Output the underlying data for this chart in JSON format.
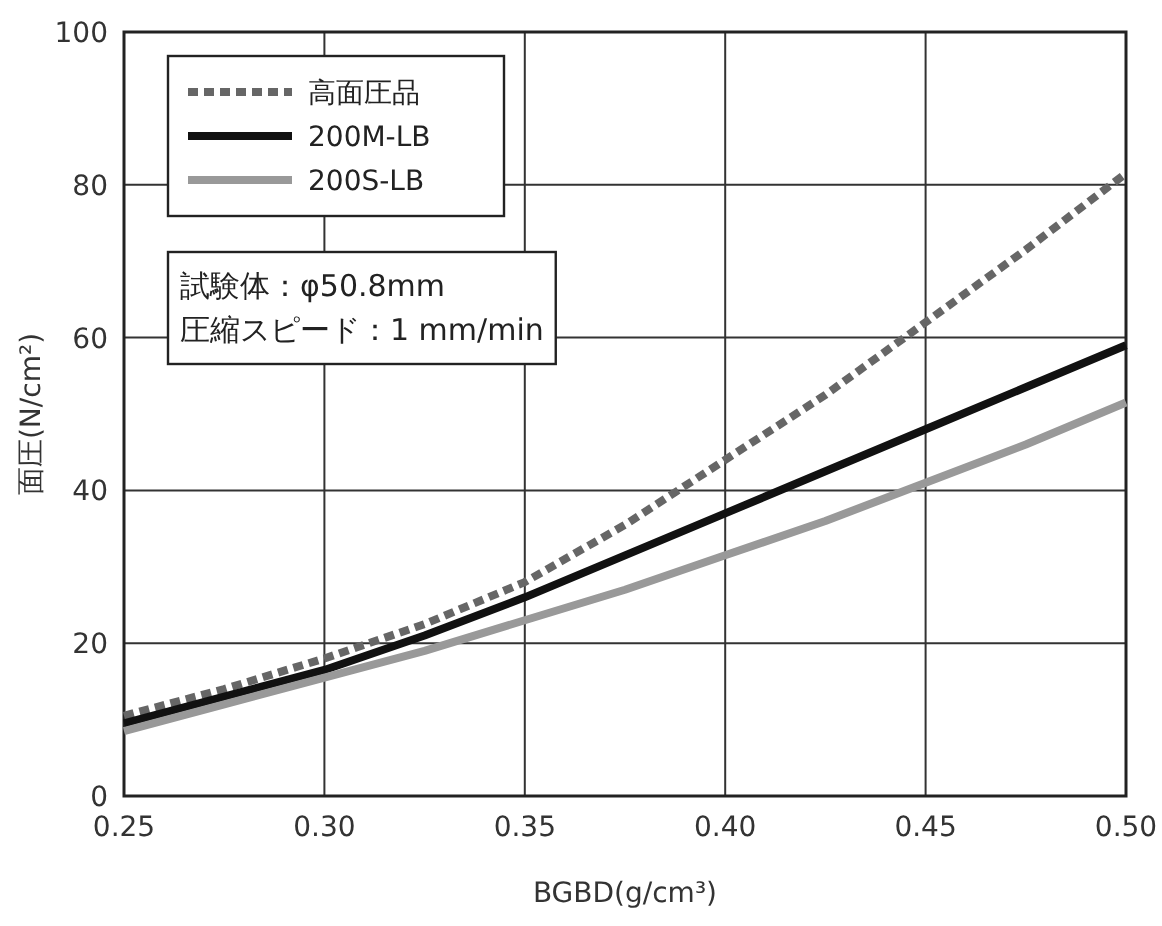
{
  "chart_data": {
    "type": "line",
    "xlabel": "BGBD(g/cm³)",
    "ylabel": "面圧(N/cm²)",
    "x": [
      0.25,
      0.275,
      0.3,
      0.325,
      0.35,
      0.375,
      0.4,
      0.425,
      0.45,
      0.475,
      0.5
    ],
    "xlim": [
      0.25,
      0.5
    ],
    "ylim": [
      0,
      100
    ],
    "xticks": [
      {
        "value": 0.25,
        "label": "0.25"
      },
      {
        "value": 0.3,
        "label": "0.30"
      },
      {
        "value": 0.35,
        "label": "0.35"
      },
      {
        "value": 0.4,
        "label": "0.40"
      },
      {
        "value": 0.45,
        "label": "0.45"
      },
      {
        "value": 0.5,
        "label": "0.50"
      }
    ],
    "yticks": [
      0,
      20,
      40,
      60,
      80,
      100
    ],
    "grid": true,
    "legend": "top left",
    "series": [
      {
        "name": "高面圧品",
        "color": "#666666",
        "line_style": "dashed",
        "values": [
          10.5,
          14,
          18,
          22.5,
          28,
          35.5,
          44,
          52.5,
          62,
          71.5,
          81.5
        ]
      },
      {
        "name": "200M-LB",
        "color": "#111111",
        "line_style": "solid",
        "values": [
          9.5,
          13,
          16.5,
          21,
          26,
          31.5,
          37,
          42.5,
          48,
          53.5,
          59
        ]
      },
      {
        "name": "200S-LB",
        "color": "#999999",
        "line_style": "solid",
        "values": [
          8.5,
          12,
          15.5,
          19,
          23,
          27,
          31.5,
          36,
          41,
          46,
          51.5
        ]
      }
    ],
    "annotations": [
      "試験体：φ50.8mm",
      "圧縮スピード：1 mm/min"
    ]
  }
}
